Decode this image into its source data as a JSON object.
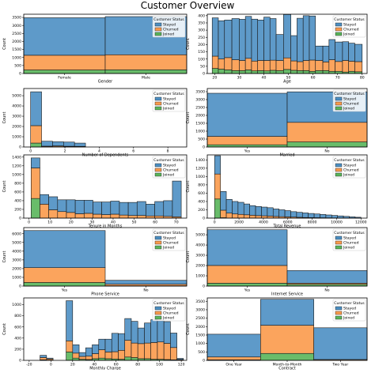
{
  "page_title": "Customer Overview",
  "colors": {
    "Stayed": "#4c8fc3",
    "Churned": "#fb9a4b",
    "Joined": "#59b55a",
    "edge": "#1a1a1a"
  },
  "legend": {
    "title": "Customer Status",
    "items": [
      "Stayed",
      "Churned",
      "Joined"
    ]
  },
  "chart_data": [
    {
      "id": "gender",
      "type": "bar",
      "stacked": true,
      "xlabel": "Gender",
      "ylabel": "Count",
      "categories": [
        "Female",
        "Male"
      ],
      "ylim": [
        0,
        3700
      ],
      "yticks": [
        0,
        500,
        1000,
        1500,
        2000,
        2500,
        3000,
        3500
      ],
      "series": [
        {
          "name": "Joined",
          "values": [
            220,
            230
          ]
        },
        {
          "name": "Churned",
          "values": [
            920,
            940
          ]
        },
        {
          "name": "Stayed",
          "values": [
            2340,
            2380
          ]
        }
      ]
    },
    {
      "id": "age",
      "type": "bar",
      "stacked": true,
      "xlabel": "Age",
      "ylabel": "Count",
      "xlim": [
        17,
        82
      ],
      "ylim": [
        0,
        410
      ],
      "xticks": [
        20,
        30,
        40,
        50,
        60,
        70,
        80
      ],
      "yticks": [
        0,
        50,
        100,
        150,
        200,
        250,
        300,
        350,
        400
      ],
      "bins": [
        [
          19,
          21.5
        ],
        [
          21.5,
          24
        ],
        [
          24,
          27
        ],
        [
          27,
          30
        ],
        [
          30,
          32.5
        ],
        [
          32.5,
          35
        ],
        [
          35,
          37.5
        ],
        [
          37.5,
          40
        ],
        [
          40,
          42.5
        ],
        [
          42.5,
          45
        ],
        [
          45,
          48
        ],
        [
          48,
          51
        ],
        [
          51,
          53.5
        ],
        [
          53.5,
          56
        ],
        [
          56,
          58.5
        ],
        [
          58.5,
          61
        ],
        [
          61,
          64
        ],
        [
          64,
          66.5
        ],
        [
          66.5,
          69
        ],
        [
          69,
          72
        ],
        [
          72,
          74.5
        ],
        [
          74.5,
          77
        ],
        [
          77,
          80
        ]
      ],
      "series": [
        {
          "name": "Joined",
          "values": [
            35,
            30,
            25,
            20,
            20,
            25,
            18,
            20,
            18,
            22,
            20,
            28,
            22,
            20,
            20,
            15,
            20,
            20,
            15,
            15,
            10,
            15,
            12
          ]
        },
        {
          "name": "Churned",
          "values": [
            85,
            70,
            85,
            75,
            70,
            80,
            68,
            70,
            72,
            70,
            70,
            80,
            65,
            62,
            70,
            78,
            70,
            60,
            80,
            68,
            80,
            70,
            70
          ]
        },
        {
          "name": "Stayed",
          "values": [
            265,
            265,
            260,
            285,
            285,
            290,
            290,
            280,
            300,
            288,
            180,
            300,
            175,
            300,
            310,
            305,
            100,
            110,
            140,
            135,
            130,
            125,
            120
          ]
        }
      ]
    },
    {
      "id": "dependents",
      "type": "bar",
      "stacked": true,
      "xlabel": "Number of Dependents",
      "ylabel": "Count",
      "xlim": [
        -0.4,
        9.1
      ],
      "ylim": [
        0,
        5700
      ],
      "xticks": [
        0,
        2,
        4,
        6,
        8
      ],
      "yticks": [
        0,
        1000,
        2000,
        3000,
        4000,
        5000
      ],
      "bins": [
        [
          0,
          0.64
        ],
        [
          0.64,
          1.28
        ],
        [
          1.28,
          1.92
        ],
        [
          1.92,
          2.56
        ],
        [
          2.56,
          3.2
        ]
      ],
      "series": [
        {
          "name": "Joined",
          "values": [
            380,
            20,
            30,
            20,
            20
          ]
        },
        {
          "name": "Churned",
          "values": [
            1700,
            60,
            80,
            50,
            40
          ]
        },
        {
          "name": "Stayed",
          "values": [
            3300,
            480,
            400,
            410,
            320
          ]
        }
      ]
    },
    {
      "id": "married",
      "type": "bar",
      "stacked": true,
      "xlabel": "Married",
      "ylabel": "Count",
      "categories": [
        "Yes",
        "No"
      ],
      "ylim": [
        0,
        3700
      ],
      "yticks": [
        0,
        500,
        1000,
        1500,
        2000,
        2500,
        3000,
        3500
      ],
      "series": [
        {
          "name": "Joined",
          "values": [
            140,
            320
          ]
        },
        {
          "name": "Churned",
          "values": [
            530,
            1240
          ]
        },
        {
          "name": "Stayed",
          "values": [
            2730,
            1930
          ]
        }
      ]
    },
    {
      "id": "tenure",
      "type": "bar",
      "stacked": true,
      "xlabel": "Tenure in Months",
      "ylabel": "Count",
      "xlim": [
        -2.5,
        75
      ],
      "ylim": [
        0,
        1450
      ],
      "xticks": [
        0,
        10,
        20,
        30,
        40,
        50,
        60,
        70
      ],
      "yticks": [
        0,
        200,
        400,
        600,
        800,
        1000,
        1200,
        1400
      ],
      "bins": [
        [
          1,
          5.2
        ],
        [
          5.2,
          9.4
        ],
        [
          9.4,
          13.6
        ],
        [
          13.6,
          17.8
        ],
        [
          17.8,
          22
        ],
        [
          22,
          26.2
        ],
        [
          26.2,
          30.4
        ],
        [
          30.4,
          34.6
        ],
        [
          34.6,
          38.8
        ],
        [
          38.8,
          43
        ],
        [
          43,
          47.2
        ],
        [
          47.2,
          51.4
        ],
        [
          51.4,
          55.6
        ],
        [
          55.6,
          59.8
        ],
        [
          59.8,
          64
        ],
        [
          64,
          68.2
        ],
        [
          68.2,
          72.4
        ]
      ],
      "series": [
        {
          "name": "Joined",
          "values": [
            450,
            0,
            0,
            0,
            0,
            0,
            0,
            0,
            0,
            0,
            0,
            0,
            0,
            0,
            0,
            0,
            0
          ]
        },
        {
          "name": "Churned",
          "values": [
            700,
            320,
            190,
            150,
            130,
            100,
            110,
            90,
            80,
            90,
            70,
            60,
            60,
            50,
            50,
            40,
            30
          ]
        },
        {
          "name": "Stayed",
          "values": [
            230,
            220,
            300,
            270,
            290,
            310,
            300,
            280,
            290,
            300,
            290,
            300,
            320,
            270,
            330,
            360,
            820
          ]
        }
      ]
    },
    {
      "id": "revenue",
      "type": "bar",
      "stacked": true,
      "xlabel": "Total Revenue",
      "ylabel": "Count",
      "xlim": [
        -600,
        12500
      ],
      "ylim": [
        0,
        1520
      ],
      "xticks": [
        0,
        2000,
        4000,
        6000,
        8000,
        10000,
        12000
      ],
      "yticks": [
        0,
        200,
        400,
        600,
        800,
        1000,
        1200,
        1400
      ],
      "bins": [
        [
          0,
          480
        ],
        [
          480,
          960
        ],
        [
          960,
          1440
        ],
        [
          1440,
          1920
        ],
        [
          1920,
          2400
        ],
        [
          2400,
          2880
        ],
        [
          2880,
          3360
        ],
        [
          3360,
          3840
        ],
        [
          3840,
          4320
        ],
        [
          4320,
          4800
        ],
        [
          4800,
          5280
        ],
        [
          5280,
          5760
        ],
        [
          5760,
          6240
        ],
        [
          6240,
          6720
        ],
        [
          6720,
          7200
        ],
        [
          7200,
          7680
        ],
        [
          7680,
          8160
        ],
        [
          8160,
          8640
        ],
        [
          8640,
          9120
        ],
        [
          9120,
          9600
        ],
        [
          9600,
          10080
        ],
        [
          10080,
          10560
        ],
        [
          10560,
          11040
        ],
        [
          11040,
          11520
        ],
        [
          11520,
          12000
        ]
      ],
      "series": [
        {
          "name": "Joined",
          "values": [
            460,
            10,
            0,
            0,
            0,
            0,
            0,
            0,
            0,
            0,
            0,
            0,
            0,
            0,
            0,
            0,
            0,
            0,
            0,
            0,
            0,
            0,
            0,
            0,
            0
          ]
        },
        {
          "name": "Churned",
          "values": [
            600,
            180,
            120,
            100,
            90,
            80,
            70,
            60,
            55,
            50,
            40,
            35,
            30,
            25,
            20,
            15,
            12,
            10,
            8,
            6,
            4,
            3,
            2,
            1,
            1
          ]
        },
        {
          "name": "Stayed",
          "values": [
            440,
            450,
            330,
            300,
            290,
            260,
            230,
            220,
            210,
            200,
            180,
            165,
            150,
            130,
            120,
            110,
            100,
            90,
            80,
            70,
            60,
            50,
            40,
            30,
            20
          ]
        }
      ]
    },
    {
      "id": "phone",
      "type": "bar",
      "stacked": true,
      "xlabel": "Phone Service",
      "ylabel": "Count",
      "categories": [
        "Yes",
        "No"
      ],
      "ylim": [
        0,
        6700
      ],
      "yticks": [
        0,
        1000,
        2000,
        3000,
        4000,
        5000,
        6000
      ],
      "series": [
        {
          "name": "Joined",
          "values": [
            410,
            40
          ]
        },
        {
          "name": "Churned",
          "values": [
            1700,
            170
          ]
        },
        {
          "name": "Stayed",
          "values": [
            4250,
            450
          ]
        }
      ]
    },
    {
      "id": "internet",
      "type": "bar",
      "stacked": true,
      "xlabel": "Internet Service",
      "ylabel": "Count",
      "categories": [
        "Yes",
        "No"
      ],
      "ylim": [
        0,
        5700
      ],
      "yticks": [
        0,
        1000,
        2000,
        3000,
        4000,
        5000
      ],
      "series": [
        {
          "name": "Joined",
          "values": [
            280,
            170
          ]
        },
        {
          "name": "Churned",
          "values": [
            1730,
            110
          ]
        },
        {
          "name": "Stayed",
          "values": [
            3480,
            1230
          ]
        }
      ]
    },
    {
      "id": "monthly",
      "type": "bar",
      "stacked": true,
      "xlabel": "Monthly Charge",
      "ylabel": "Count",
      "xlim": [
        -25,
        125
      ],
      "ylim": [
        0,
        1120
      ],
      "xticks": [
        -20,
        0,
        20,
        40,
        60,
        80,
        100,
        120
      ],
      "yticks": [
        0,
        200,
        400,
        600,
        800,
        1000
      ],
      "bins": [
        [
          -10,
          -4
        ],
        [
          -4,
          2
        ],
        [
          2,
          8
        ],
        [
          8,
          14
        ],
        [
          14,
          20
        ],
        [
          20,
          26
        ],
        [
          26,
          32
        ],
        [
          32,
          38
        ],
        [
          38,
          44
        ],
        [
          44,
          50
        ],
        [
          50,
          56
        ],
        [
          56,
          62
        ],
        [
          62,
          68
        ],
        [
          68,
          74
        ],
        [
          74,
          80
        ],
        [
          80,
          86
        ],
        [
          86,
          92
        ],
        [
          92,
          98
        ],
        [
          98,
          104
        ],
        [
          104,
          110
        ],
        [
          110,
          116
        ],
        [
          116,
          122
        ]
      ],
      "series": [
        {
          "name": "Joined",
          "values": [
            10,
            5,
            0,
            0,
            150,
            40,
            20,
            15,
            30,
            40,
            30,
            25,
            20,
            60,
            50,
            30,
            30,
            20,
            20,
            15,
            10,
            5
          ]
        },
        {
          "name": "Churned",
          "values": [
            40,
            20,
            0,
            0,
            200,
            90,
            50,
            60,
            90,
            150,
            120,
            130,
            160,
            300,
            260,
            270,
            280,
            300,
            310,
            290,
            220,
            10
          ]
        },
        {
          "name": "Stayed",
          "values": [
            40,
            15,
            0,
            0,
            720,
            150,
            70,
            150,
            160,
            190,
            230,
            330,
            300,
            390,
            390,
            280,
            360,
            410,
            380,
            390,
            260,
            20
          ]
        }
      ]
    },
    {
      "id": "contract",
      "type": "bar",
      "stacked": true,
      "xlabel": "Contract",
      "ylabel": "Count",
      "categories": [
        "One Year",
        "Month-to-Month",
        "Two Year"
      ],
      "ylim": [
        0,
        3700
      ],
      "yticks": [
        0,
        500,
        1000,
        1500,
        2000,
        2500,
        3000,
        3500
      ],
      "series": [
        {
          "name": "Joined",
          "values": [
            30,
            410,
            10
          ]
        },
        {
          "name": "Churned",
          "values": [
            170,
            1670,
            40
          ]
        },
        {
          "name": "Stayed",
          "values": [
            1350,
            1540,
            1880
          ]
        }
      ]
    }
  ]
}
